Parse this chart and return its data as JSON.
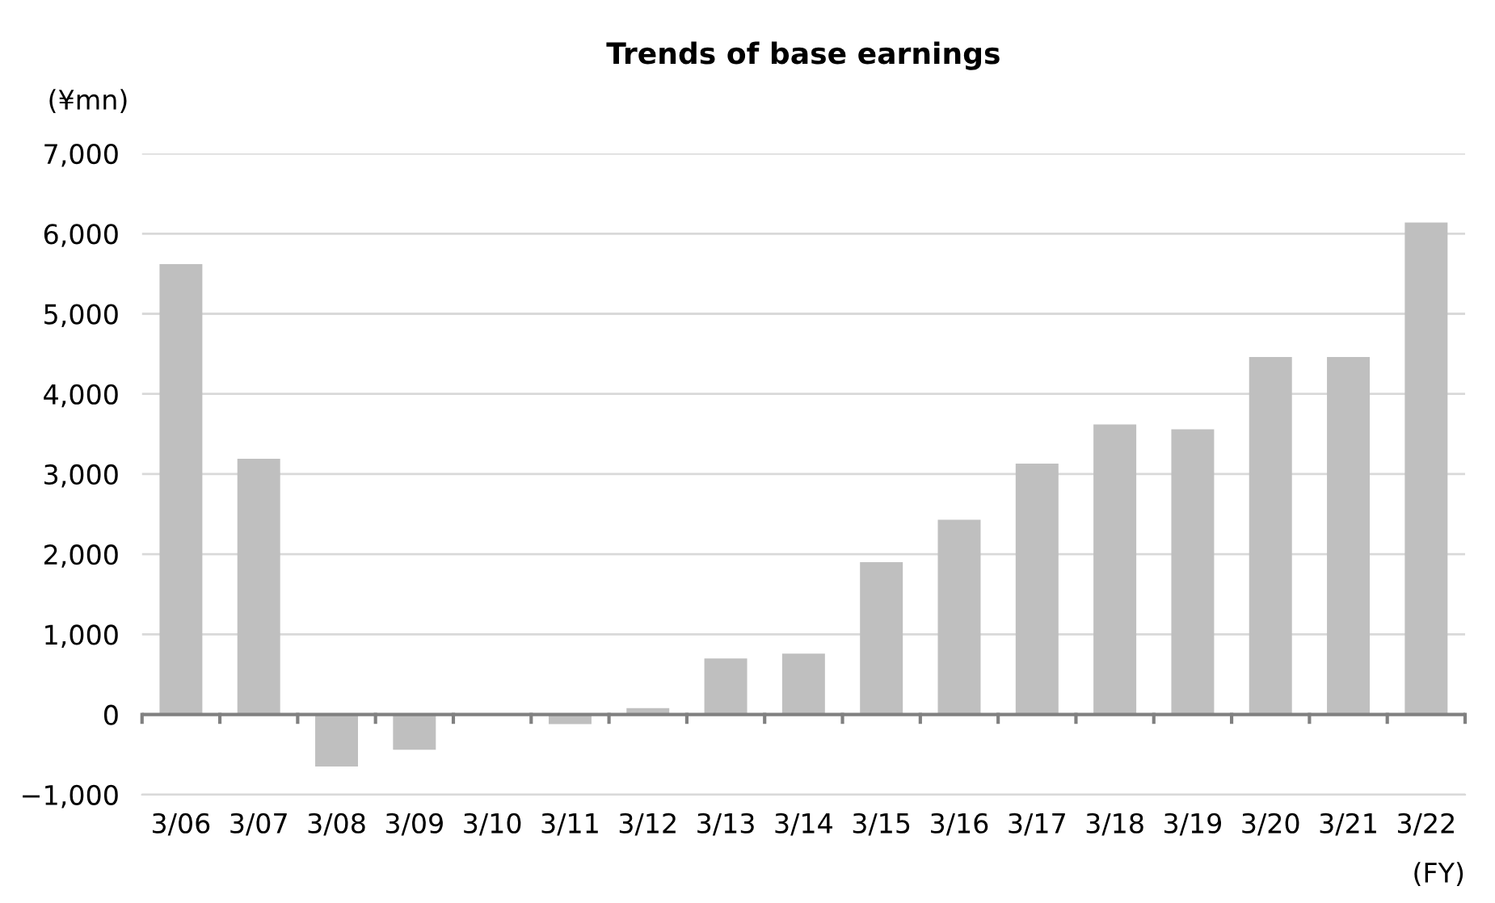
{
  "chart_data": {
    "type": "bar",
    "title": "Trends of base earnings",
    "ylabel": "(¥mn)",
    "xlabel": "(FY)",
    "categories": [
      "3/06",
      "3/07",
      "3/08",
      "3/09",
      "3/10",
      "3/11",
      "3/12",
      "3/13",
      "3/14",
      "3/15",
      "3/16",
      "3/17",
      "3/18",
      "3/19",
      "3/20",
      "3/21",
      "3/22"
    ],
    "values": [
      5620,
      3190,
      -650,
      -440,
      0,
      -120,
      80,
      700,
      760,
      1900,
      2430,
      3130,
      3620,
      3560,
      4460,
      4460,
      6140
    ],
    "color": "#bfbfbf",
    "ylim": [
      -1000,
      7000
    ],
    "yticks": [
      {
        "value": -1000,
        "label": "−1,000"
      },
      {
        "value": 0,
        "label": "0"
      },
      {
        "value": 1000,
        "label": "1,000"
      },
      {
        "value": 2000,
        "label": "2,000"
      },
      {
        "value": 3000,
        "label": "3,000"
      },
      {
        "value": 4000,
        "label": "4,000"
      },
      {
        "value": 5000,
        "label": "5,000"
      },
      {
        "value": 6000,
        "label": "6,000"
      },
      {
        "value": 7000,
        "label": "7,000"
      }
    ],
    "grid": "y",
    "legend": false
  }
}
